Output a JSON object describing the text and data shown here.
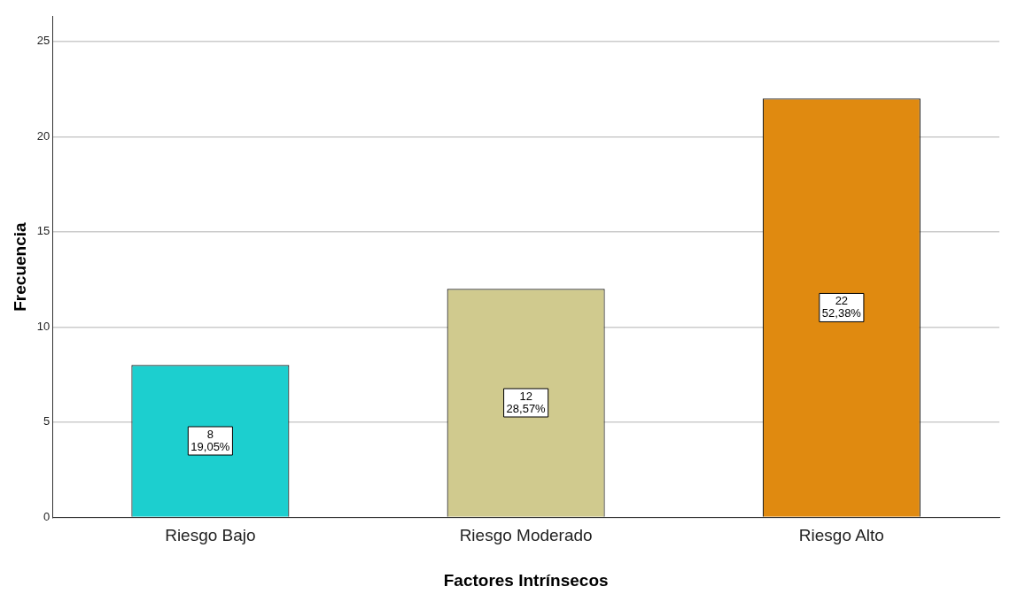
{
  "chart_data": {
    "type": "bar",
    "xlabel": "Factores Intrínsecos",
    "ylabel": "Frecuencia",
    "categories": [
      "Riesgo Bajo",
      "Riesgo Moderado",
      "Riesgo Alto"
    ],
    "values": [
      8,
      12,
      22
    ],
    "colors": [
      "#1ccfcf",
      "#d0ca8e",
      "#e08a10"
    ],
    "value_labels": [
      "8\n19,05%",
      "12\n28,57%",
      "22\n52,38%"
    ],
    "ylim": [
      0,
      26.3
    ],
    "yticks": [
      0,
      5,
      10,
      15,
      20,
      25
    ],
    "grid": "y",
    "legend": false
  }
}
